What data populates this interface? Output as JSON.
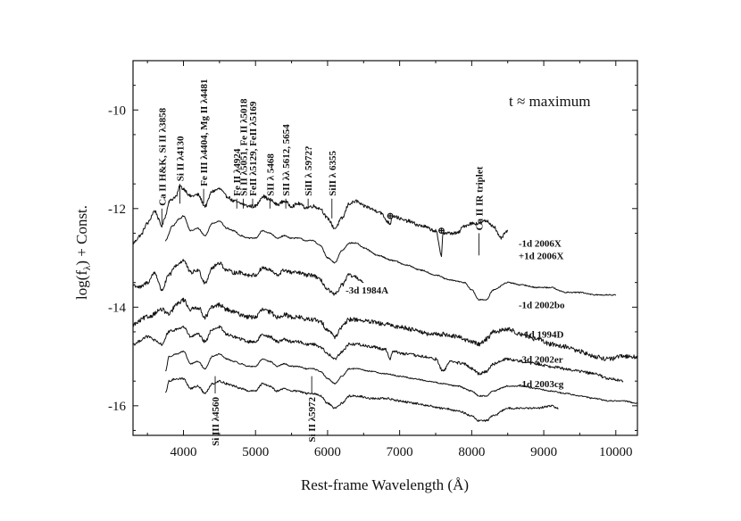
{
  "chart_data": {
    "type": "line",
    "title": "",
    "annotation": "t ≈ maximum",
    "xlabel": "Rest-frame Wavelength (Å)",
    "ylabel": "log(f_λ) + Const.",
    "ylabel_main": "log(f",
    "ylabel_sub": "λ",
    "ylabel_tail": ") + Const.",
    "xlim": [
      3300,
      10300
    ],
    "ylim": [
      -16.6,
      -9.0
    ],
    "xticks": [
      4000,
      5000,
      6000,
      7000,
      8000,
      9000,
      10000
    ],
    "xtick_labels": [
      "4000",
      "5000",
      "6000",
      "7000",
      "8000",
      "9000",
      "10000"
    ],
    "yticks": [
      -10,
      -12,
      -14,
      -16
    ],
    "ytick_labels": [
      "-10",
      "-12",
      "-14",
      "-16"
    ],
    "line_ids": [
      {
        "label": "Ca II H&K, Si II λ3858",
        "wavelength": 3700,
        "tick_top": -12.0,
        "tick_bottom": -12.3
      },
      {
        "label": "Si II λ4130",
        "wavelength": 3950,
        "tick_top": -11.5,
        "tick_bottom": -11.9
      },
      {
        "label": "Fe III λ4404, Mg II λ4481",
        "wavelength": 4280,
        "tick_top": -11.6,
        "tick_bottom": -11.9
      },
      {
        "label": "Fe II λ4924",
        "wavelength": 4740,
        "tick_top": -11.8,
        "tick_bottom": -12.0
      },
      {
        "label": "Si II λ5051, Fe II λ5018",
        "wavelength": 4830,
        "tick_top": -11.8,
        "tick_bottom": -12.0
      },
      {
        "label": "FeII λ5129, FeII λ5169",
        "wavelength": 4960,
        "tick_top": -11.8,
        "tick_bottom": -12.0
      },
      {
        "label": "SII λ 5468",
        "wavelength": 5200,
        "tick_top": -11.8,
        "tick_bottom": -12.0
      },
      {
        "label": "SII λλ 5612, 5654",
        "wavelength": 5420,
        "tick_top": -11.8,
        "tick_bottom": -12.0
      },
      {
        "label": "SiII λ 5972?",
        "wavelength": 5730,
        "tick_top": -11.8,
        "tick_bottom": -12.0
      },
      {
        "label": "SiII λ 6355",
        "wavelength": 6060,
        "tick_top": -11.8,
        "tick_bottom": -12.2
      },
      {
        "label": "Ca II IR triplet",
        "wavelength": 8100,
        "tick_top": -12.5,
        "tick_bottom": -12.95
      },
      {
        "label": "Si III λ4560",
        "wavelength": 4440,
        "tick_top": -15.4,
        "tick_bottom": -15.75,
        "position": "below"
      },
      {
        "label": "Si II λ5972",
        "wavelength": 5780,
        "tick_top": -15.4,
        "tick_bottom": -15.75,
        "position": "below"
      }
    ],
    "telluric": [
      {
        "symbol": "⊕",
        "wavelength": 6870,
        "value": -12.1
      },
      {
        "symbol": "⊕",
        "wavelength": 7580,
        "value": -12.4
      }
    ],
    "series": [
      {
        "name": "-1d 2006X",
        "label_at": [
          8650,
          -12.7
        ],
        "x": [
          3300,
          3400,
          3500,
          3600,
          3700,
          3750,
          3800,
          3900,
          3950,
          4000,
          4100,
          4200,
          4300,
          4400,
          4500,
          4600,
          4700,
          4800,
          4900,
          5000,
          5100,
          5200,
          5300,
          5400,
          5500,
          5600,
          5700,
          5800,
          5900,
          6000,
          6100,
          6200,
          6300,
          6400,
          6500,
          6700,
          6870,
          6900,
          7100,
          7300,
          7500,
          7580,
          7600,
          7800,
          7900,
          8000,
          8100,
          8200,
          8300,
          8400,
          8500
        ],
        "values": [
          -12.7,
          -12.55,
          -12.3,
          -12.05,
          -12.35,
          -12.15,
          -11.85,
          -11.75,
          -11.55,
          -11.6,
          -11.75,
          -11.72,
          -11.95,
          -11.65,
          -11.6,
          -11.75,
          -11.85,
          -11.9,
          -11.95,
          -11.95,
          -11.75,
          -11.82,
          -11.92,
          -11.85,
          -11.95,
          -11.9,
          -11.98,
          -11.95,
          -12.0,
          -12.2,
          -12.4,
          -12.2,
          -11.9,
          -11.85,
          -11.95,
          -12.05,
          -12.3,
          -12.15,
          -12.25,
          -12.35,
          -12.45,
          -12.95,
          -12.5,
          -12.5,
          -12.35,
          -12.3,
          -12.3,
          -12.25,
          -12.35,
          -12.6,
          -12.45
        ],
        "noise": 0.035
      },
      {
        "name": "+1d 2006X",
        "label_at": [
          8650,
          -12.95
        ],
        "x": [
          3750,
          3850,
          3950,
          4000,
          4100,
          4200,
          4300,
          4400,
          4500,
          4600,
          4700,
          4800,
          4900,
          5000,
          5100,
          5200,
          5300,
          5400,
          5500,
          5600,
          5700,
          5800,
          5900,
          6000,
          6100,
          6200,
          6300,
          6400,
          6500,
          6700,
          6900,
          7100,
          7300,
          7500,
          7700,
          7900,
          8000,
          8100,
          8200,
          8300,
          8500,
          8700,
          8900,
          9100,
          9300,
          9500,
          9700,
          9900,
          10000
        ],
        "values": [
          -12.65,
          -12.35,
          -12.2,
          -12.15,
          -12.45,
          -12.4,
          -12.55,
          -12.3,
          -12.25,
          -12.4,
          -12.45,
          -12.55,
          -12.6,
          -12.6,
          -12.45,
          -12.5,
          -12.6,
          -12.55,
          -12.6,
          -12.6,
          -12.65,
          -12.65,
          -12.75,
          -13.0,
          -13.1,
          -12.85,
          -12.7,
          -12.7,
          -12.8,
          -12.95,
          -13.05,
          -13.15,
          -13.25,
          -13.35,
          -13.45,
          -13.5,
          -13.65,
          -13.85,
          -13.85,
          -13.65,
          -13.5,
          -13.55,
          -13.6,
          -13.6,
          -13.7,
          -13.7,
          -13.75,
          -13.75,
          -13.75
        ],
        "noise": 0.012
      },
      {
        "name": "-3d 1984A",
        "label_at": [
          6250,
          -13.65
        ],
        "x": [
          3300,
          3400,
          3500,
          3600,
          3700,
          3800,
          3900,
          4000,
          4100,
          4200,
          4300,
          4400,
          4500,
          4600,
          4700,
          4800,
          4900,
          5000,
          5100,
          5200,
          5300,
          5400,
          5500,
          5600,
          5700,
          5800,
          5900,
          6000,
          6100,
          6200,
          6300,
          6400,
          6500
        ],
        "values": [
          -13.55,
          -13.6,
          -13.5,
          -13.3,
          -13.65,
          -13.35,
          -13.15,
          -13.05,
          -13.3,
          -13.25,
          -13.5,
          -13.2,
          -13.1,
          -13.25,
          -13.3,
          -13.3,
          -13.35,
          -13.35,
          -13.2,
          -13.25,
          -13.35,
          -13.25,
          -13.3,
          -13.3,
          -13.35,
          -13.35,
          -13.45,
          -13.65,
          -13.75,
          -13.55,
          -13.35,
          -13.4,
          -13.5
        ],
        "noise": 0.04
      },
      {
        "name": "-1d 2002bo",
        "label_at": [
          8650,
          -13.95
        ],
        "x": [
          3300,
          3500,
          3700,
          3800,
          3900,
          4000,
          4100,
          4200,
          4300,
          4400,
          4500,
          4600,
          4700,
          4800,
          4900,
          5000,
          5100,
          5200,
          5300,
          5400,
          5500,
          5600,
          5700,
          5800,
          5900,
          6000,
          6100,
          6200,
          6300,
          6400,
          6600,
          6800,
          7000,
          7200,
          7400,
          7600,
          7800,
          8000,
          8100,
          8200,
          8300,
          8500,
          8700,
          8900,
          9100,
          9300,
          9500,
          9700,
          9900,
          10100,
          10300
        ],
        "values": [
          -14.35,
          -14.2,
          -14.05,
          -14.15,
          -13.95,
          -13.85,
          -14.05,
          -14.0,
          -14.2,
          -14.0,
          -13.95,
          -14.05,
          -14.1,
          -14.15,
          -14.2,
          -14.2,
          -14.05,
          -14.1,
          -14.2,
          -14.15,
          -14.2,
          -14.2,
          -14.25,
          -14.25,
          -14.3,
          -14.45,
          -14.6,
          -14.4,
          -14.25,
          -14.25,
          -14.3,
          -14.35,
          -14.4,
          -14.45,
          -14.55,
          -14.55,
          -14.6,
          -14.7,
          -14.75,
          -14.65,
          -14.5,
          -14.45,
          -14.55,
          -14.65,
          -14.75,
          -14.8,
          -14.9,
          -15.0,
          -15.05,
          -15.0,
          -15.0
        ],
        "noise": 0.045
      },
      {
        "name": "+1d 1994D",
        "label_at": [
          8650,
          -14.55
        ],
        "x": [
          3300,
          3500,
          3700,
          3800,
          3900,
          4000,
          4100,
          4200,
          4300,
          4400,
          4500,
          4600,
          4700,
          4800,
          4900,
          5000,
          5100,
          5200,
          5300,
          5400,
          5500,
          5600,
          5700,
          5800,
          5900,
          6000,
          6100,
          6200,
          6300,
          6400,
          6600,
          6800,
          6870,
          6900,
          7100,
          7300,
          7500,
          7600,
          7700,
          7900,
          8000,
          8100,
          8200,
          8300,
          8500,
          8700,
          8900,
          9100,
          9300,
          9500,
          9700,
          9900,
          10100
        ],
        "values": [
          -14.75,
          -14.6,
          -14.75,
          -14.5,
          -14.45,
          -14.4,
          -14.6,
          -14.55,
          -14.7,
          -14.45,
          -14.4,
          -14.55,
          -14.6,
          -14.65,
          -14.7,
          -14.7,
          -14.55,
          -14.6,
          -14.7,
          -14.65,
          -14.7,
          -14.7,
          -14.75,
          -14.75,
          -14.8,
          -14.95,
          -15.05,
          -14.9,
          -14.75,
          -14.75,
          -14.8,
          -14.85,
          -15.05,
          -14.9,
          -14.95,
          -15.0,
          -15.05,
          -15.3,
          -15.1,
          -15.15,
          -15.25,
          -15.35,
          -15.3,
          -15.15,
          -15.05,
          -15.1,
          -15.15,
          -15.2,
          -15.25,
          -15.3,
          -15.35,
          -15.45,
          -15.5
        ],
        "noise": 0.03
      },
      {
        "name": "-3d 2002er",
        "label_at": [
          8650,
          -15.05
        ],
        "x": [
          3750,
          3800,
          3900,
          4000,
          4100,
          4200,
          4300,
          4400,
          4500,
          4600,
          4700,
          4800,
          4900,
          5000,
          5100,
          5200,
          5300,
          5400,
          5500,
          5600,
          5700,
          5800,
          5900,
          6000,
          6100,
          6200,
          6300,
          6400,
          6600,
          6800,
          7000,
          7200,
          7400,
          7600,
          7800,
          8000,
          8100,
          8200,
          8300,
          8500,
          8700,
          8900,
          9100,
          9300,
          9500,
          9700,
          9900,
          10100,
          10300
        ],
        "values": [
          -15.3,
          -15.0,
          -14.95,
          -14.9,
          -15.15,
          -15.1,
          -15.25,
          -15.0,
          -14.95,
          -15.05,
          -15.1,
          -15.15,
          -15.2,
          -15.2,
          -15.05,
          -15.1,
          -15.2,
          -15.15,
          -15.2,
          -15.2,
          -15.25,
          -15.25,
          -15.3,
          -15.45,
          -15.55,
          -15.4,
          -15.25,
          -15.25,
          -15.3,
          -15.35,
          -15.4,
          -15.45,
          -15.5,
          -15.55,
          -15.6,
          -15.7,
          -15.8,
          -15.8,
          -15.7,
          -15.6,
          -15.6,
          -15.65,
          -15.7,
          -15.75,
          -15.8,
          -15.85,
          -15.9,
          -15.9,
          -15.95
        ],
        "noise": 0.012
      },
      {
        "name": "-1d 2003cg",
        "label_at": [
          8650,
          -15.55
        ],
        "x": [
          3750,
          3800,
          3900,
          4000,
          4100,
          4200,
          4300,
          4400,
          4500,
          4600,
          4700,
          4800,
          4900,
          5000,
          5100,
          5200,
          5300,
          5400,
          5500,
          5600,
          5700,
          5800,
          5900,
          6000,
          6100,
          6200,
          6300,
          6400,
          6600,
          6800,
          7000,
          7200,
          7400,
          7600,
          7800,
          8000,
          8100,
          8200,
          8300,
          8500,
          8700,
          8900,
          9100,
          9200
        ],
        "values": [
          -15.75,
          -15.5,
          -15.45,
          -15.45,
          -15.65,
          -15.6,
          -15.75,
          -15.55,
          -15.5,
          -15.55,
          -15.6,
          -15.65,
          -15.7,
          -15.7,
          -15.55,
          -15.6,
          -15.7,
          -15.65,
          -15.7,
          -15.7,
          -15.75,
          -15.75,
          -15.8,
          -15.95,
          -16.05,
          -15.95,
          -15.8,
          -15.8,
          -15.85,
          -15.85,
          -15.9,
          -15.95,
          -16.0,
          -16.05,
          -16.1,
          -16.2,
          -16.3,
          -16.3,
          -16.2,
          -16.05,
          -16.05,
          -16.05,
          -16.0,
          -16.05
        ],
        "noise": 0.02
      }
    ]
  }
}
